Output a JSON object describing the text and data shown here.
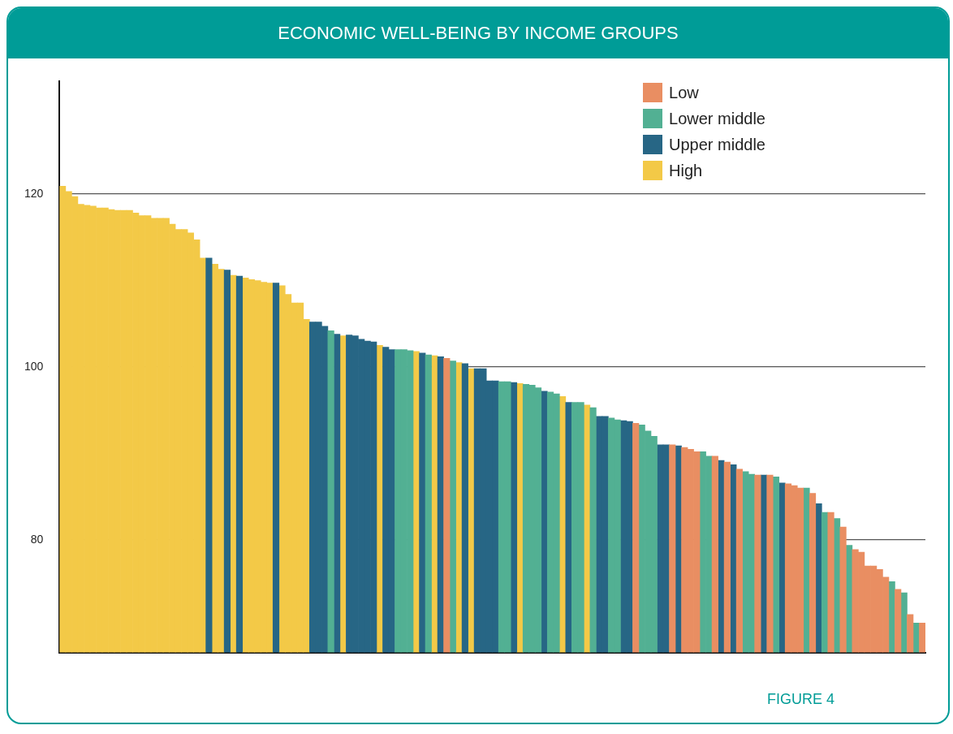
{
  "chart_data": {
    "type": "bar",
    "title": "ECONOMIC WELL-BEING BY INCOME GROUPS",
    "annotations": [
      "FIGURE 4"
    ],
    "categories": [
      null,
      null,
      null,
      null,
      null,
      null,
      null,
      null,
      null,
      null,
      null,
      null,
      null,
      null,
      null,
      null,
      null,
      null,
      null,
      null,
      null,
      null,
      null,
      null,
      null,
      null,
      null,
      null,
      null,
      null,
      null,
      null,
      null,
      null,
      null,
      null,
      null,
      null,
      null,
      null,
      null,
      null,
      null,
      null,
      null,
      null,
      null,
      null,
      null,
      null,
      null,
      null,
      null,
      null,
      null,
      null,
      null,
      null,
      null,
      null,
      null,
      null,
      null,
      null,
      null,
      null,
      null,
      null,
      null,
      null,
      null,
      null,
      null,
      null,
      null,
      null,
      null,
      null,
      null,
      null,
      null,
      null,
      null,
      null,
      null,
      null,
      null,
      null,
      null,
      null,
      null,
      null,
      null,
      null,
      null,
      null,
      null,
      null,
      null,
      null,
      null,
      null,
      null,
      null,
      null,
      null,
      null,
      null,
      null,
      null,
      null,
      null,
      null,
      null,
      null,
      null,
      null,
      null,
      null,
      null,
      null,
      null,
      null,
      null,
      null,
      null,
      null,
      null,
      null,
      null,
      null,
      null,
      null,
      null,
      null,
      null,
      null,
      null,
      null,
      null,
      null,
      null
    ],
    "series": [
      {
        "name": "Low",
        "color": "#e98e62",
        "values": [
          null,
          null,
          null,
          null,
          null,
          null,
          null,
          null,
          null,
          null,
          null,
          null,
          null,
          null,
          null,
          null,
          null,
          null,
          null,
          null,
          null,
          null,
          null,
          null,
          null,
          null,
          null,
          null,
          null,
          null,
          null,
          null,
          null,
          null,
          null,
          null,
          null,
          null,
          null,
          null,
          null,
          null,
          null,
          null,
          null,
          null,
          null,
          null,
          null,
          null,
          null,
          null,
          null,
          null,
          null,
          null,
          null,
          null,
          null,
          null,
          null,
          null,
          null,
          101.0,
          null,
          null,
          null,
          null,
          null,
          null,
          null,
          null,
          null,
          null,
          null,
          null,
          null,
          null,
          null,
          null,
          null,
          null,
          null,
          null,
          null,
          null,
          null,
          null,
          null,
          null,
          null,
          null,
          null,
          null,
          93.5,
          null,
          null,
          null,
          null,
          null,
          91.0,
          null,
          90.7,
          90.5,
          90.2,
          null,
          null,
          89.7,
          null,
          89.0,
          null,
          88.2,
          null,
          null,
          87.5,
          null,
          87.5,
          null,
          null,
          86.5,
          86.3,
          86.0,
          null,
          85.4,
          null,
          null,
          83.2,
          null,
          81.5,
          null,
          78.9,
          78.6,
          77.0,
          77.0,
          76.6,
          75.7,
          null,
          74.3,
          null,
          71.4,
          null,
          70.4
        ]
      },
      {
        "name": "Lower middle",
        "color": "#52b093",
        "values": [
          null,
          null,
          null,
          null,
          null,
          null,
          null,
          null,
          null,
          null,
          null,
          null,
          null,
          null,
          null,
          null,
          null,
          null,
          null,
          null,
          null,
          null,
          null,
          null,
          null,
          null,
          null,
          null,
          null,
          null,
          null,
          null,
          null,
          null,
          null,
          null,
          null,
          null,
          null,
          null,
          null,
          null,
          null,
          null,
          104.2,
          null,
          null,
          null,
          null,
          null,
          null,
          null,
          null,
          null,
          null,
          102.0,
          102.0,
          101.9,
          null,
          null,
          101.4,
          null,
          null,
          null,
          100.7,
          null,
          null,
          null,
          null,
          null,
          null,
          null,
          98.3,
          98.3,
          null,
          null,
          98.0,
          97.9,
          97.6,
          null,
          97.1,
          96.9,
          null,
          null,
          95.9,
          95.9,
          null,
          95.3,
          null,
          null,
          94.1,
          93.9,
          null,
          null,
          null,
          93.3,
          92.6,
          92.0,
          null,
          null,
          null,
          null,
          null,
          null,
          null,
          90.2,
          89.7,
          null,
          null,
          null,
          null,
          null,
          87.9,
          87.6,
          null,
          null,
          null,
          87.3,
          null,
          null,
          null,
          null,
          86.0,
          null,
          null,
          83.2,
          null,
          82.5,
          null,
          79.4,
          null,
          null,
          null,
          null,
          null,
          null,
          75.2,
          null,
          73.9,
          null,
          70.4,
          null
        ]
      },
      {
        "name": "Upper middle",
        "color": "#276685",
        "values": [
          null,
          null,
          null,
          null,
          null,
          null,
          null,
          null,
          null,
          null,
          null,
          null,
          null,
          null,
          null,
          null,
          null,
          null,
          null,
          null,
          null,
          null,
          null,
          null,
          112.6,
          null,
          null,
          111.2,
          null,
          110.5,
          null,
          null,
          null,
          null,
          null,
          109.7,
          null,
          null,
          null,
          null,
          null,
          105.2,
          105.2,
          104.7,
          null,
          103.8,
          null,
          103.7,
          103.6,
          103.2,
          103.0,
          102.9,
          null,
          102.3,
          102.0,
          null,
          null,
          null,
          null,
          101.6,
          null,
          null,
          101.2,
          null,
          null,
          null,
          100.4,
          null,
          99.8,
          99.8,
          98.4,
          98.4,
          null,
          null,
          98.2,
          null,
          null,
          null,
          null,
          97.2,
          null,
          null,
          null,
          95.9,
          null,
          null,
          null,
          null,
          94.3,
          94.3,
          null,
          null,
          93.8,
          93.7,
          null,
          null,
          null,
          null,
          91.0,
          91.0,
          null,
          90.9,
          null,
          null,
          null,
          null,
          null,
          null,
          89.2,
          null,
          88.7,
          null,
          null,
          null,
          null,
          87.5,
          null,
          null,
          86.6,
          null,
          null,
          null,
          null,
          null,
          84.2,
          null,
          null,
          null,
          null,
          null,
          null,
          null,
          null,
          null,
          null,
          null,
          null,
          null,
          null,
          null,
          null,
          null
        ]
      },
      {
        "name": "High",
        "color": "#f3c947",
        "values": [
          120.9,
          120.3,
          119.7,
          118.8,
          118.7,
          118.6,
          118.4,
          118.4,
          118.2,
          118.1,
          118.1,
          118.1,
          117.8,
          117.5,
          117.5,
          117.2,
          117.2,
          117.2,
          116.5,
          115.9,
          115.9,
          115.5,
          114.7,
          112.6,
          null,
          111.9,
          111.3,
          null,
          110.6,
          null,
          110.3,
          110.1,
          110.0,
          109.8,
          109.7,
          null,
          109.4,
          108.4,
          107.4,
          107.4,
          105.5,
          null,
          null,
          null,
          null,
          null,
          103.6,
          null,
          null,
          null,
          null,
          null,
          102.5,
          null,
          null,
          null,
          null,
          null,
          101.8,
          null,
          null,
          101.3,
          null,
          null,
          null,
          100.5,
          null,
          99.8,
          null,
          null,
          null,
          null,
          null,
          null,
          null,
          98.1,
          null,
          null,
          null,
          null,
          null,
          null,
          96.6,
          null,
          null,
          null,
          95.6,
          null,
          null,
          null,
          null,
          null,
          null,
          null,
          null,
          null,
          null,
          null,
          null,
          null,
          null,
          null,
          null,
          null,
          null,
          null,
          null,
          null,
          null,
          null,
          null,
          null,
          null,
          null,
          null,
          null,
          null,
          null,
          null,
          null,
          null,
          null,
          null,
          null,
          null,
          null,
          null,
          null,
          null,
          null,
          null,
          null,
          null,
          null,
          null,
          null,
          null,
          null,
          null,
          null,
          null,
          null
        ]
      }
    ],
    "ylim": [
      67,
      133
    ],
    "yticks": [
      80,
      100,
      120
    ],
    "grid": "y",
    "legend": "top right"
  }
}
